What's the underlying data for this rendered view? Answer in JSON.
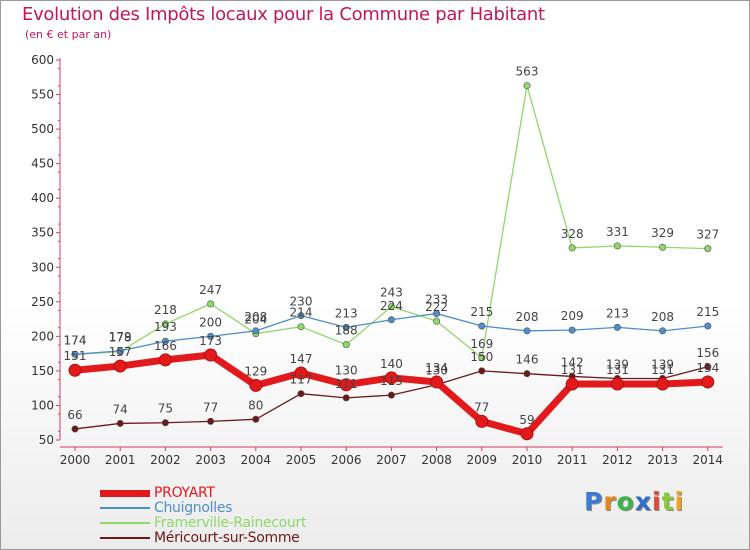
{
  "title": "Evolution des Impôts locaux pour la Commune par Habitant",
  "subtitle": "(en € et par an)",
  "logo": {
    "text": "Proxiti",
    "letters": [
      "P",
      "r",
      "o",
      "x",
      "i",
      "t",
      "i"
    ],
    "colors": [
      "#3a7bd5",
      "#e8851c",
      "#3cb54a",
      "#2f6fc9",
      "#e04a3a",
      "#8cc63f",
      "#f2a31b"
    ]
  },
  "chart_data": {
    "type": "line",
    "title": "Evolution des Impôts locaux pour la Commune par Habitant",
    "subtitle": "(en € et par an)",
    "x": [
      "2000",
      "2001",
      "2002",
      "2003",
      "2004",
      "2005",
      "2006",
      "2007",
      "2008",
      "2009",
      "2010",
      "2011",
      "2012",
      "2013",
      "2014"
    ],
    "ylim": [
      50,
      600
    ],
    "yticks": [
      50,
      100,
      150,
      200,
      250,
      300,
      350,
      400,
      450,
      500,
      550,
      600
    ],
    "grid": false,
    "legend_position": "bottom-left",
    "series": [
      {
        "name": "PROYART",
        "color": "#e31a1c",
        "values": [
          151,
          157,
          166,
          173,
          129,
          147,
          130,
          140,
          134,
          77,
          59,
          131,
          131,
          131,
          134
        ]
      },
      {
        "name": "Chuignolles",
        "color": "#4f8fc9",
        "values": [
          174,
          179,
          193,
          200,
          208,
          230,
          213,
          224,
          233,
          215,
          208,
          209,
          213,
          208,
          215
        ]
      },
      {
        "name": "Framerville-Rainecourt",
        "color": "#8fd86a",
        "values": [
          174,
          178,
          218,
          247,
          204,
          214,
          188,
          243,
          222,
          169,
          563,
          328,
          331,
          329,
          327
        ]
      },
      {
        "name": "Méricourt-sur-Somme",
        "color": "#6b1a1a",
        "values": [
          66,
          74,
          75,
          77,
          80,
          117,
          111,
          115,
          130,
          150,
          146,
          142,
          139,
          139,
          156
        ]
      }
    ]
  }
}
